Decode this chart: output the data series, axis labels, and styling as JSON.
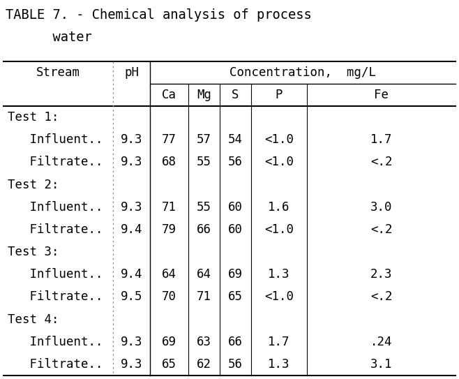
{
  "title_line1": "TABLE 7. - Chemical analysis of process",
  "title_line2": "      water",
  "background_color": "#ffffff",
  "font_family": "DejaVu Sans Mono",
  "rows": [
    [
      "Test 1:",
      "",
      "",
      "",
      "",
      "",
      ""
    ],
    [
      "   Influent..",
      "9.3",
      "77",
      "57",
      "54",
      "<1.0",
      "1.7"
    ],
    [
      "   Filtrate..",
      "9.3",
      "68",
      "55",
      "56",
      "<1.0",
      "<.2"
    ],
    [
      "Test 2:",
      "",
      "",
      "",
      "",
      "",
      ""
    ],
    [
      "   Influent..",
      "9.3",
      "71",
      "55",
      "60",
      "1.6",
      "3.0"
    ],
    [
      "   Filtrate..",
      "9.4",
      "79",
      "66",
      "60",
      "<1.0",
      "<.2"
    ],
    [
      "Test 3:",
      "",
      "",
      "",
      "",
      "",
      ""
    ],
    [
      "   Influent..",
      "9.4",
      "64",
      "64",
      "69",
      "1.3",
      "2.3"
    ],
    [
      "   Filtrate..",
      "9.5",
      "70",
      "71",
      "65",
      "<1.0",
      "<.2"
    ],
    [
      "Test 4:",
      "",
      "",
      "",
      "",
      "",
      ""
    ],
    [
      "   Influent..",
      "9.3",
      "69",
      "63",
      "66",
      "1.7",
      ".24"
    ],
    [
      "   Filtrate..",
      "9.3",
      "65",
      "62",
      "56",
      "1.3",
      "3.1"
    ]
  ],
  "title_fontsize": 13.5,
  "header_fontsize": 12.5,
  "data_fontsize": 12.5,
  "fig_width": 6.58,
  "fig_height": 5.43,
  "dpi": 100
}
